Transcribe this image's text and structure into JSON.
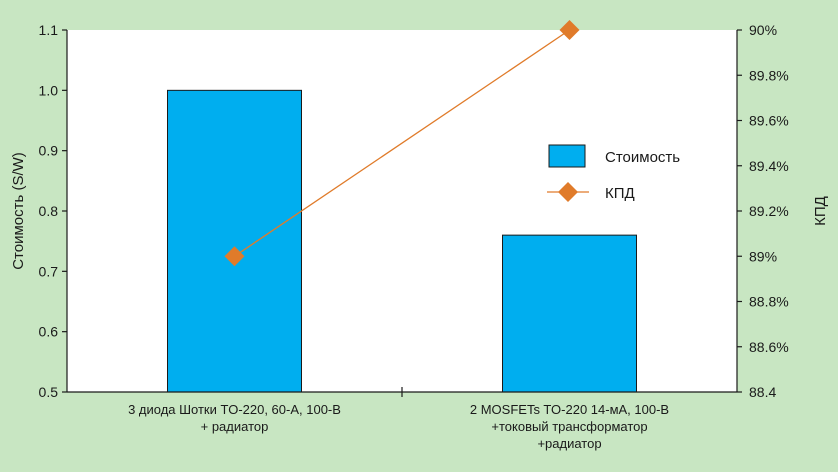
{
  "chart_data": {
    "type": "bar",
    "categories": [
      [
        "3 диода Шотки TO-220, 60-А, 100-В",
        "+ радиатор"
      ],
      [
        "2 MOSFETs TO-220 14-мА, 100-В",
        "+токовый трансформатор",
        "+радиатор"
      ]
    ],
    "series": [
      {
        "name": "Стоимость",
        "type": "bar",
        "axis": "left",
        "values": [
          1.0,
          0.76
        ],
        "color": "#00aeef"
      },
      {
        "name": "КПД",
        "type": "line",
        "axis": "right",
        "values": [
          89.0,
          90.0
        ],
        "color": "#e07b2a"
      }
    ],
    "ylabel": "Стоимость (S/W)",
    "ylabel_right": "КПД",
    "ylim": [
      0.5,
      1.1
    ],
    "yticks": [
      "0.5",
      "0.6",
      "0.7",
      "0.8",
      "0.9",
      "1.0",
      "1.1"
    ],
    "ylim_right": [
      88.4,
      90.0
    ],
    "yticks_right": [
      "88.4",
      "88.6%",
      "88.8%",
      "89%",
      "89.2%",
      "89.4%",
      "89.6%",
      "89.8%",
      "90%"
    ],
    "legend_position": "right",
    "grid": false,
    "background_color": "#c8e6c2",
    "plot_background_color": "#ffffff"
  }
}
